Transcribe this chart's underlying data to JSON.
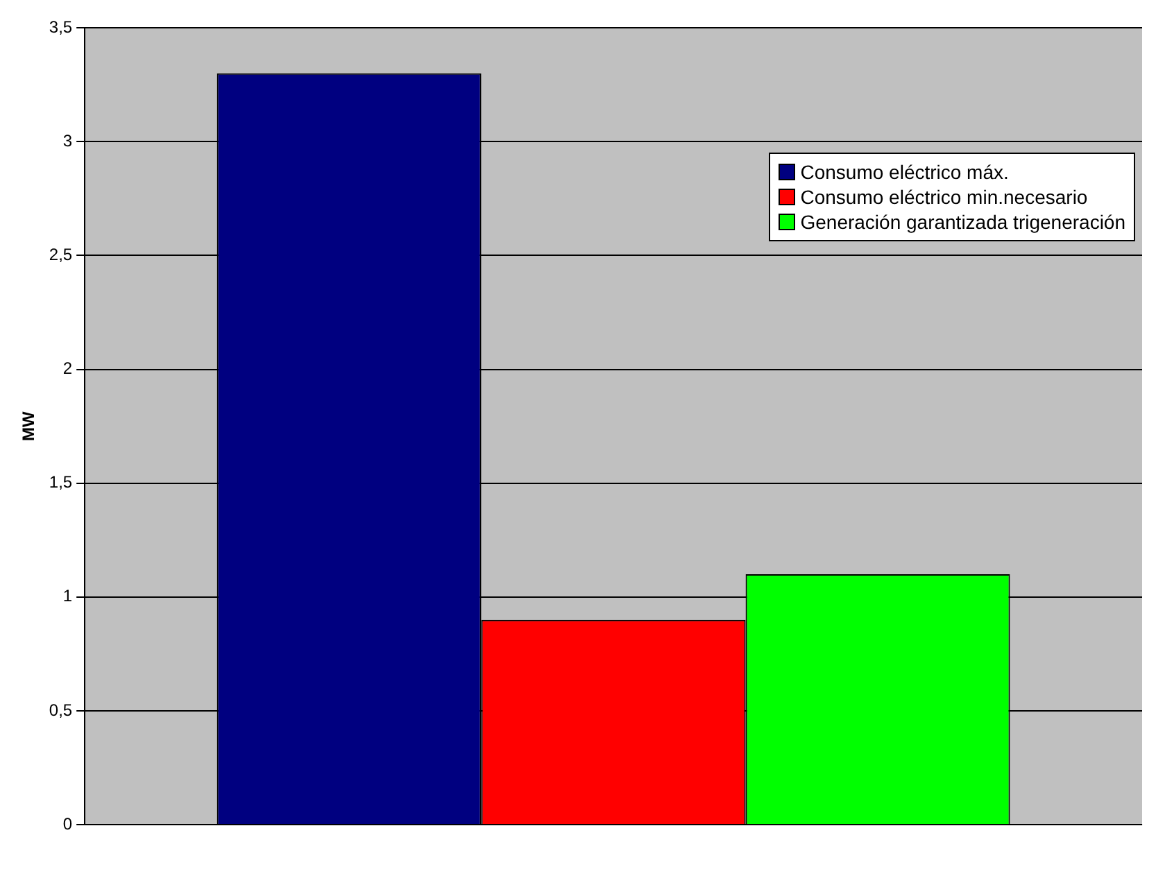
{
  "chart_data": {
    "type": "bar",
    "ylabel": "MW",
    "categories": [
      null
    ],
    "series": [
      {
        "name": "Consumo eléctrico máx.",
        "color": "#000080",
        "values": [
          3.3
        ]
      },
      {
        "name": "Consumo eléctrico min.necesario",
        "color": "#ff0000",
        "values": [
          0.9
        ]
      },
      {
        "name": "Generación garantizada trigeneración",
        "color": "#00ff00",
        "values": [
          1.1
        ]
      }
    ],
    "ylim": [
      0,
      3.5
    ],
    "yticks": [
      0,
      {
        "value": 0.5,
        "label": "0,5"
      },
      1,
      {
        "value": 1.5,
        "label": "1,5"
      },
      2,
      {
        "value": 2.5,
        "label": "2,5"
      },
      3,
      {
        "value": 3.5,
        "label": "3,5"
      }
    ],
    "grid": "y",
    "legend": "top right"
  }
}
